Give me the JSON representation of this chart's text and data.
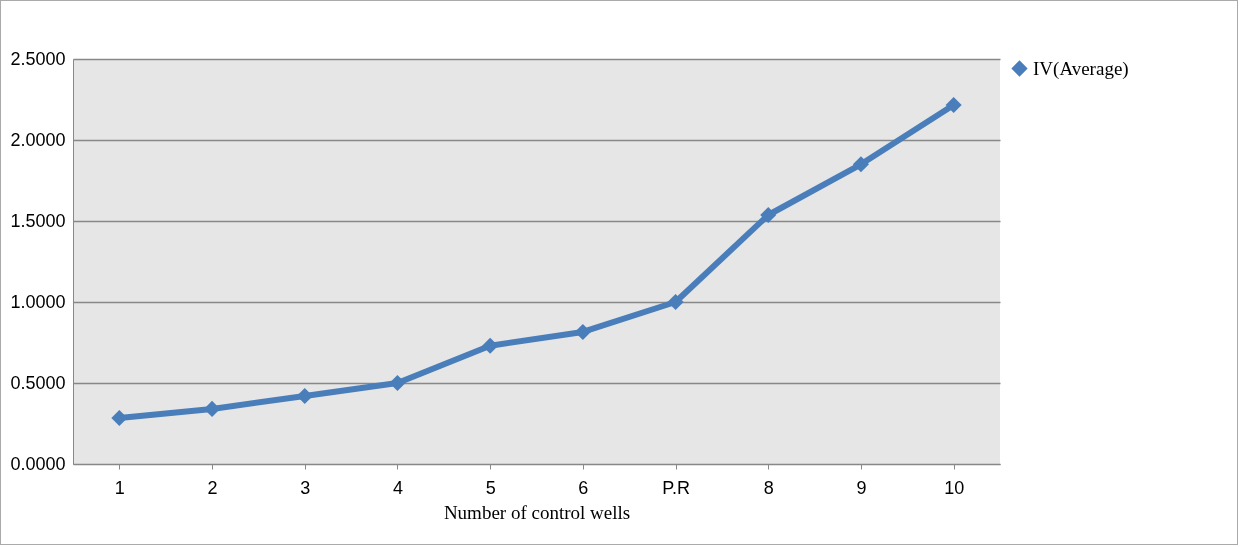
{
  "chart_data": {
    "type": "line",
    "xlabel": "Number of control wells",
    "categories": [
      "1",
      "2",
      "3",
      "4",
      "5",
      "6",
      "P.R",
      "8",
      "9",
      "10"
    ],
    "series": [
      {
        "name": "IV(Average)",
        "color": "#4a7ebb",
        "values": [
          0.284,
          0.34,
          0.42,
          0.5,
          0.73,
          0.815,
          1.0,
          1.537,
          1.85,
          2.216
        ]
      }
    ],
    "ylim": [
      0,
      2.5
    ],
    "yticks": [
      {
        "value": 0,
        "label": "0.0000"
      },
      {
        "value": 0.5,
        "label": "0.5000"
      },
      {
        "value": 1,
        "label": "1.0000"
      },
      {
        "value": 1.5,
        "label": "1.5000"
      },
      {
        "value": 2,
        "label": "2.0000"
      },
      {
        "value": 2.5,
        "label": "2.5000"
      }
    ],
    "grid": "y",
    "legend": "right",
    "marker": "diamond",
    "line_style": "solid"
  }
}
